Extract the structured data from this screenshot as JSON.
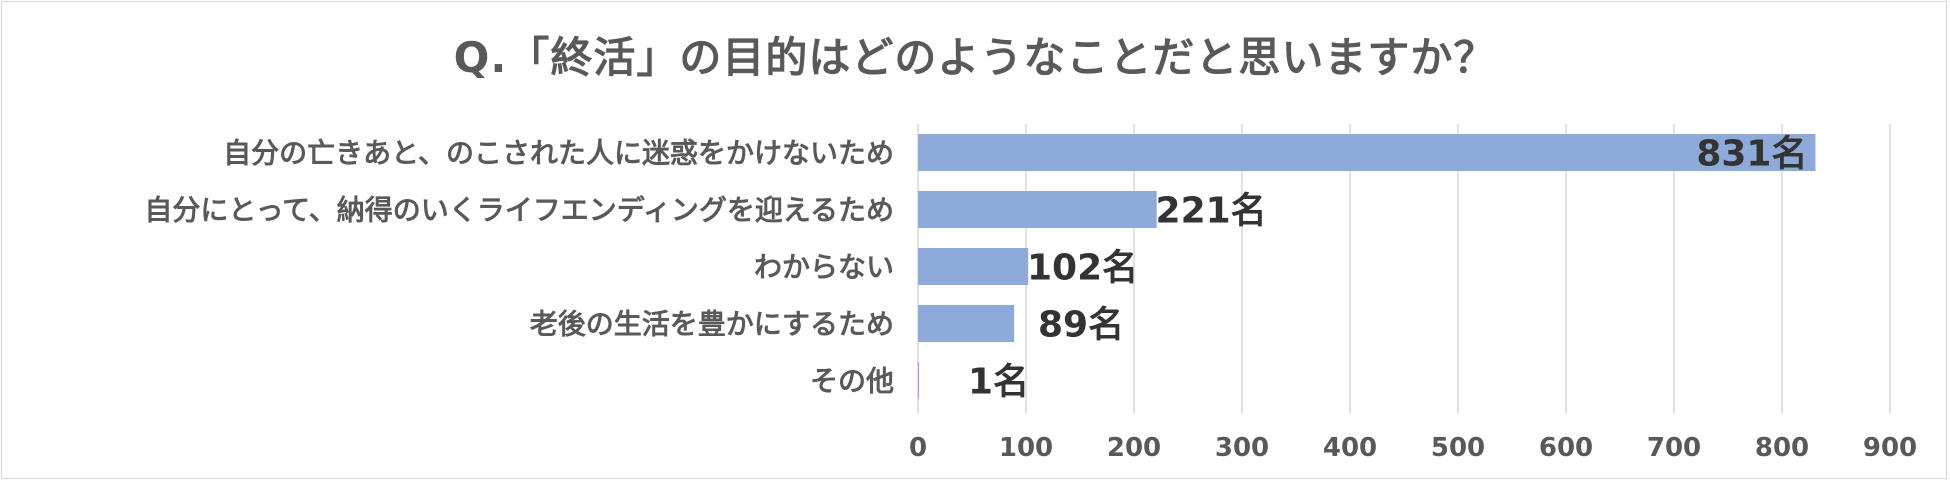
{
  "chart_data": {
    "type": "bar",
    "orientation": "horizontal",
    "title": "Q.「終活」の目的はどのようなことだと思いますか？",
    "categories": [
      "自分の亡きあと、のこされた人に迷惑をかけないため",
      "自分にとって、納得のいくライフエンディングを迎えるため",
      "わからない",
      "老後の生活を豊かにするため",
      "その他"
    ],
    "values": [
      831,
      221,
      102,
      89,
      1
    ],
    "value_suffix": "名",
    "data_labels": [
      "831名",
      "221名",
      "102名",
      "89名",
      "1名"
    ],
    "xlim": [
      0,
      900
    ],
    "xticks": [
      0,
      100,
      200,
      300,
      400,
      500,
      600,
      700,
      800,
      900
    ],
    "xtick_labels": [
      "0",
      "100",
      "200",
      "300",
      "400",
      "500",
      "600",
      "700",
      "800",
      "900"
    ],
    "grid": true,
    "legend": "none",
    "bar_color": "#8eaadb",
    "grid_color": "#d9d9d9"
  }
}
